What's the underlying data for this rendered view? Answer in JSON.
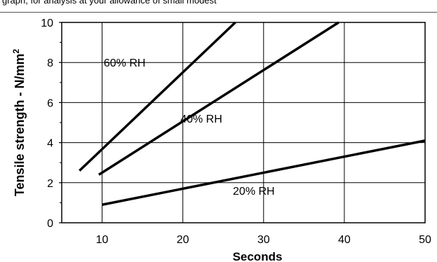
{
  "caption": "graph, for analysis at your allowance of small modest",
  "chart_data": {
    "type": "line",
    "title": "",
    "xlabel": "Seconds",
    "ylabel": "Tensile strength - N/mm",
    "ylabel_superscript": "2",
    "xlim": [
      0,
      50
    ],
    "ylim": [
      0,
      10
    ],
    "xticks": [
      10,
      20,
      30,
      40,
      50
    ],
    "yticks": [
      0,
      2,
      4,
      6,
      8,
      10
    ],
    "xtick_labels": [
      "10",
      "20",
      "30",
      "40",
      "50"
    ],
    "ytick_labels": [
      "0",
      "2",
      "4",
      "6",
      "8",
      "10"
    ],
    "grid": true,
    "legend": "none",
    "series": [
      {
        "name": "60% RH",
        "x": [
          7.2,
          26.5
        ],
        "y": [
          2.6,
          10.0
        ],
        "label_at": [
          10.2,
          7.8
        ]
      },
      {
        "name": "40% RH",
        "x": [
          9.6,
          39.3
        ],
        "y": [
          2.4,
          10.0
        ],
        "label_at": [
          19.7,
          5.0
        ]
      },
      {
        "name": "20% RH",
        "x": [
          10.0,
          50.0
        ],
        "y": [
          0.9,
          4.1
        ],
        "label_at": [
          26.2,
          1.4
        ]
      }
    ]
  }
}
